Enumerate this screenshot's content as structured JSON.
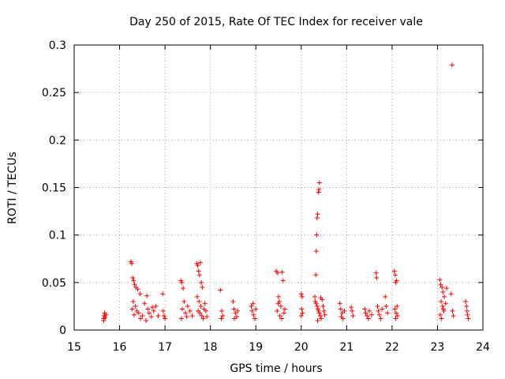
{
  "chart_data": {
    "type": "scatter",
    "title": "Day 250 of 2015, Rate Of TEC Index for receiver vale",
    "xlabel": "GPS time / hours",
    "ylabel": "ROTI / TECUs",
    "xlim": [
      15,
      24
    ],
    "ylim": [
      0,
      0.3
    ],
    "grid": true,
    "x_ticks": [
      15,
      16,
      17,
      18,
      19,
      20,
      21,
      22,
      23,
      24
    ],
    "x_tick_labels": [
      "15",
      "16",
      "17",
      "18",
      "19",
      "20",
      "21",
      "22",
      "23",
      "24"
    ],
    "y_ticks": [
      0,
      0.05,
      0.1,
      0.15,
      0.2,
      0.25,
      0.3
    ],
    "y_tick_labels": [
      "0",
      "0.05",
      "0.1",
      "0.15",
      "0.2",
      "0.25",
      "0.3"
    ],
    "marker": "+",
    "marker_color": "#ff0000",
    "series": [
      {
        "name": "ROTI",
        "points": [
          [
            15.65,
            0.012
          ],
          [
            15.66,
            0.015
          ],
          [
            15.67,
            0.018
          ],
          [
            15.68,
            0.013
          ],
          [
            15.65,
            0.01
          ],
          [
            15.7,
            0.016
          ],
          [
            16.25,
            0.072
          ],
          [
            16.27,
            0.07
          ],
          [
            16.29,
            0.055
          ],
          [
            16.31,
            0.052
          ],
          [
            16.33,
            0.048
          ],
          [
            16.36,
            0.045
          ],
          [
            16.4,
            0.043
          ],
          [
            16.45,
            0.038
          ],
          [
            16.3,
            0.03
          ],
          [
            16.35,
            0.025
          ],
          [
            16.38,
            0.02
          ],
          [
            16.42,
            0.018
          ],
          [
            16.46,
            0.012
          ],
          [
            16.5,
            0.015
          ],
          [
            16.28,
            0.022
          ],
          [
            16.32,
            0.016
          ],
          [
            16.55,
            0.028
          ],
          [
            16.6,
            0.036
          ],
          [
            16.62,
            0.022
          ],
          [
            16.65,
            0.018
          ],
          [
            16.7,
            0.014
          ],
          [
            16.75,
            0.02
          ],
          [
            16.8,
            0.025
          ],
          [
            16.85,
            0.015
          ],
          [
            16.58,
            0.01
          ],
          [
            16.72,
            0.024
          ],
          [
            16.95,
            0.038
          ],
          [
            16.98,
            0.015
          ],
          [
            17.0,
            0.012
          ],
          [
            16.96,
            0.02
          ],
          [
            17.35,
            0.052
          ],
          [
            17.37,
            0.05
          ],
          [
            17.4,
            0.044
          ],
          [
            17.42,
            0.03
          ],
          [
            17.38,
            0.022
          ],
          [
            17.45,
            0.018
          ],
          [
            17.48,
            0.014
          ],
          [
            17.5,
            0.025
          ],
          [
            17.36,
            0.012
          ],
          [
            17.55,
            0.02
          ],
          [
            17.6,
            0.015
          ],
          [
            17.7,
            0.07
          ],
          [
            17.72,
            0.068
          ],
          [
            17.74,
            0.062
          ],
          [
            17.76,
            0.058
          ],
          [
            17.78,
            0.071
          ],
          [
            17.8,
            0.05
          ],
          [
            17.82,
            0.045
          ],
          [
            17.71,
            0.035
          ],
          [
            17.75,
            0.03
          ],
          [
            17.79,
            0.025
          ],
          [
            17.73,
            0.02
          ],
          [
            17.77,
            0.018
          ],
          [
            17.81,
            0.015
          ],
          [
            17.84,
            0.012
          ],
          [
            17.86,
            0.022
          ],
          [
            17.88,
            0.028
          ],
          [
            17.9,
            0.02
          ],
          [
            17.92,
            0.014
          ],
          [
            18.22,
            0.042
          ],
          [
            18.25,
            0.02
          ],
          [
            18.27,
            0.015
          ],
          [
            18.24,
            0.012
          ],
          [
            18.5,
            0.03
          ],
          [
            18.52,
            0.022
          ],
          [
            18.55,
            0.018
          ],
          [
            18.58,
            0.014
          ],
          [
            18.6,
            0.02
          ],
          [
            18.53,
            0.012
          ],
          [
            18.9,
            0.025
          ],
          [
            18.92,
            0.02
          ],
          [
            18.95,
            0.016
          ],
          [
            18.98,
            0.012
          ],
          [
            19.0,
            0.022
          ],
          [
            18.94,
            0.028
          ],
          [
            19.45,
            0.062
          ],
          [
            19.48,
            0.06
          ],
          [
            19.58,
            0.061
          ],
          [
            19.6,
            0.052
          ],
          [
            19.5,
            0.035
          ],
          [
            19.52,
            0.03
          ],
          [
            19.55,
            0.025
          ],
          [
            19.47,
            0.02
          ],
          [
            19.62,
            0.018
          ],
          [
            19.53,
            0.015
          ],
          [
            19.57,
            0.012
          ],
          [
            19.64,
            0.022
          ],
          [
            19.49,
            0.028
          ],
          [
            20.0,
            0.038
          ],
          [
            20.02,
            0.035
          ],
          [
            20.01,
            0.022
          ],
          [
            20.03,
            0.018
          ],
          [
            20.0,
            0.015
          ],
          [
            20.4,
            0.155
          ],
          [
            20.39,
            0.148
          ],
          [
            20.38,
            0.145
          ],
          [
            20.36,
            0.122
          ],
          [
            20.35,
            0.118
          ],
          [
            20.34,
            0.1
          ],
          [
            20.33,
            0.083
          ],
          [
            20.32,
            0.058
          ],
          [
            20.3,
            0.035
          ],
          [
            20.31,
            0.03
          ],
          [
            20.33,
            0.028
          ],
          [
            20.35,
            0.025
          ],
          [
            20.37,
            0.022
          ],
          [
            20.38,
            0.02
          ],
          [
            20.4,
            0.018
          ],
          [
            20.42,
            0.015
          ],
          [
            20.44,
            0.012
          ],
          [
            20.46,
            0.032
          ],
          [
            20.48,
            0.025
          ],
          [
            20.5,
            0.02
          ],
          [
            20.52,
            0.016
          ],
          [
            20.36,
            0.01
          ],
          [
            20.43,
            0.034
          ],
          [
            20.85,
            0.028
          ],
          [
            20.87,
            0.022
          ],
          [
            20.9,
            0.018
          ],
          [
            20.88,
            0.014
          ],
          [
            20.92,
            0.012
          ],
          [
            20.95,
            0.02
          ],
          [
            21.1,
            0.024
          ],
          [
            21.12,
            0.02
          ],
          [
            21.14,
            0.015
          ],
          [
            21.4,
            0.022
          ],
          [
            21.42,
            0.018
          ],
          [
            21.45,
            0.015
          ],
          [
            21.48,
            0.012
          ],
          [
            21.5,
            0.02
          ],
          [
            21.55,
            0.016
          ],
          [
            21.65,
            0.06
          ],
          [
            21.66,
            0.055
          ],
          [
            21.68,
            0.025
          ],
          [
            21.7,
            0.02
          ],
          [
            21.72,
            0.016
          ],
          [
            21.75,
            0.012
          ],
          [
            21.78,
            0.022
          ],
          [
            21.85,
            0.035
          ],
          [
            21.87,
            0.025
          ],
          [
            21.9,
            0.018
          ],
          [
            22.05,
            0.062
          ],
          [
            22.07,
            0.058
          ],
          [
            22.08,
            0.05
          ],
          [
            22.1,
            0.052
          ],
          [
            22.06,
            0.022
          ],
          [
            22.09,
            0.018
          ],
          [
            22.12,
            0.015
          ],
          [
            22.08,
            0.012
          ],
          [
            22.11,
            0.025
          ],
          [
            23.05,
            0.053
          ],
          [
            23.07,
            0.048
          ],
          [
            23.1,
            0.045
          ],
          [
            23.12,
            0.04
          ],
          [
            23.15,
            0.035
          ],
          [
            23.08,
            0.03
          ],
          [
            23.11,
            0.025
          ],
          [
            23.14,
            0.02
          ],
          [
            23.06,
            0.016
          ],
          [
            23.09,
            0.012
          ],
          [
            23.13,
            0.022
          ],
          [
            23.18,
            0.028
          ],
          [
            23.2,
            0.044
          ],
          [
            23.32,
            0.279
          ],
          [
            23.3,
            0.038
          ],
          [
            23.33,
            0.02
          ],
          [
            23.35,
            0.015
          ],
          [
            23.62,
            0.03
          ],
          [
            23.64,
            0.025
          ],
          [
            23.65,
            0.02
          ],
          [
            23.66,
            0.016
          ],
          [
            23.68,
            0.012
          ]
        ]
      }
    ]
  }
}
